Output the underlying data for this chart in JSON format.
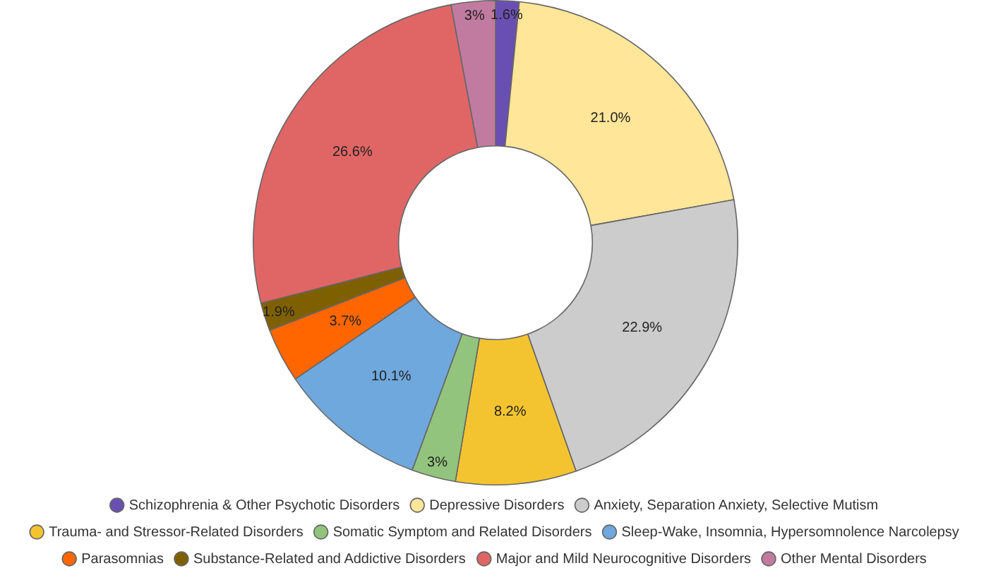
{
  "chart_data": {
    "type": "donut",
    "categories": [
      "Schizophrenia & Other Psychotic Disorders",
      "Depressive Disorders",
      "Anxiety, Separation Anxiety, Selective Mutism",
      "Trauma- and Stressor-Related Disorders",
      "Somatic Symptom and Related Disorders",
      "Sleep-Wake, Insomnia, Hypersomnolence Narcolepsy",
      "Parasomnias",
      "Substance-Related and Addictive Disorders",
      "Major and Mild Neurocognitive Disorders",
      "Other Mental Disorders"
    ],
    "values": [
      1.6,
      21.0,
      22.9,
      8.2,
      3,
      10.1,
      3.7,
      1.9,
      26.6,
      3
    ],
    "value_labels": [
      "1.6%",
      "21.0%",
      "22.9%",
      "8.2%",
      "3%",
      "10.1%",
      "3.7%",
      "1.9%",
      "26.6%",
      "3%"
    ],
    "colors": [
      "#6a4fb3",
      "#ffe699",
      "#cccccc",
      "#f4c430",
      "#93c47d",
      "#6fa8dc",
      "#ff6600",
      "#7f6000",
      "#e06666",
      "#c27ba0"
    ],
    "legend": "bottom"
  }
}
